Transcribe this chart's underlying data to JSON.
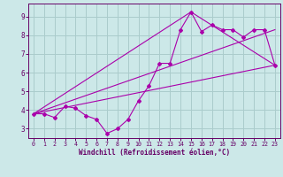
{
  "bg_color": "#cce8e8",
  "grid_color": "#aacccc",
  "line_color": "#aa00aa",
  "marker_color": "#aa00aa",
  "xlabel": "Windchill (Refroidissement éolien,°C)",
  "xlabel_color": "#660066",
  "tick_color": "#660066",
  "spine_color": "#660066",
  "xlim": [
    -0.5,
    23.5
  ],
  "ylim": [
    2.5,
    9.7
  ],
  "yticks": [
    3,
    4,
    5,
    6,
    7,
    8,
    9
  ],
  "xticks": [
    0,
    1,
    2,
    3,
    4,
    5,
    6,
    7,
    8,
    9,
    10,
    11,
    12,
    13,
    14,
    15,
    16,
    17,
    18,
    19,
    20,
    21,
    22,
    23
  ],
  "series1_x": [
    0,
    1,
    2,
    3,
    4,
    5,
    6,
    7,
    8,
    9,
    10,
    11,
    12,
    13,
    14,
    15,
    16,
    17,
    18,
    19,
    20,
    21,
    22,
    23
  ],
  "series1_y": [
    3.8,
    3.8,
    3.6,
    4.2,
    4.1,
    3.7,
    3.5,
    2.75,
    3.0,
    3.5,
    4.5,
    5.3,
    6.5,
    6.5,
    8.3,
    9.25,
    8.2,
    8.55,
    8.3,
    8.3,
    7.9,
    8.3,
    8.3,
    6.4
  ],
  "series3_x": [
    0,
    23
  ],
  "series3_y": [
    3.8,
    6.4
  ],
  "series4_x": [
    0,
    15,
    23
  ],
  "series4_y": [
    3.8,
    9.25,
    6.4
  ],
  "series5_x": [
    0,
    23
  ],
  "series5_y": [
    3.8,
    8.3
  ]
}
